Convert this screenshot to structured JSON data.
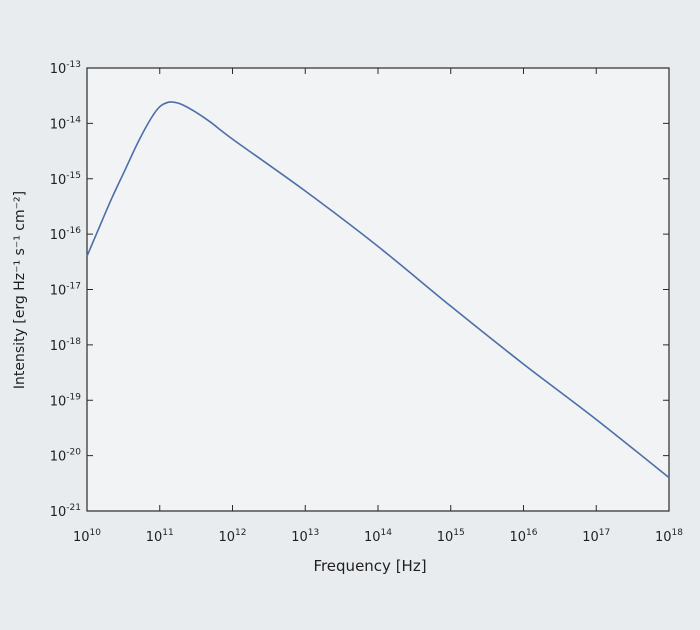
{
  "chart_data": {
    "type": "line",
    "title": "",
    "xlabel": "Frequency [Hz]",
    "ylabel": "Intensity [erg Hz⁻¹ s⁻¹ cm⁻²]",
    "x_scale": "log",
    "y_scale": "log",
    "xlim": [
      10000000000.0,
      1e+18
    ],
    "ylim": [
      1e-21,
      1e-13
    ],
    "grid": false,
    "x_ticks": [
      {
        "base": "10",
        "exp": "10"
      },
      {
        "base": "10",
        "exp": "11"
      },
      {
        "base": "10",
        "exp": "12"
      },
      {
        "base": "10",
        "exp": "13"
      },
      {
        "base": "10",
        "exp": "14"
      },
      {
        "base": "10",
        "exp": "15"
      },
      {
        "base": "10",
        "exp": "16"
      },
      {
        "base": "10",
        "exp": "17"
      },
      {
        "base": "10",
        "exp": "18"
      }
    ],
    "y_ticks": [
      {
        "base": "10",
        "exp": "-13"
      },
      {
        "base": "10",
        "exp": "-14"
      },
      {
        "base": "10",
        "exp": "-15"
      },
      {
        "base": "10",
        "exp": "-16"
      },
      {
        "base": "10",
        "exp": "-17"
      },
      {
        "base": "10",
        "exp": "-18"
      },
      {
        "base": "10",
        "exp": "-19"
      },
      {
        "base": "10",
        "exp": "-20"
      },
      {
        "base": "10",
        "exp": "-21"
      }
    ],
    "series": [
      {
        "color": "#4c6fa8",
        "points": [
          [
            10000000000.0,
            4e-17
          ],
          [
            15000000000.0,
            1.4e-16
          ],
          [
            22000000000.0,
            4.5e-16
          ],
          [
            33000000000.0,
            1.4e-15
          ],
          [
            50000000000.0,
            4.5e-15
          ],
          [
            75000000000.0,
            1.2e-14
          ],
          [
            100000000000.0,
            2e-14
          ],
          [
            130000000000.0,
            2.4e-14
          ],
          [
            160000000000.0,
            2.4e-14
          ],
          [
            200000000000.0,
            2.2e-14
          ],
          [
            300000000000.0,
            1.65e-14
          ],
          [
            500000000000.0,
            1.05e-14
          ],
          [
            1000000000000.0,
            5.2e-15
          ],
          [
            10000000000000.0,
            6e-16
          ],
          [
            100000000000000.0,
            6e-17
          ],
          [
            1000000000000000.0,
            5e-18
          ],
          [
            1e+16,
            4.5e-19
          ],
          [
            1e+17,
            4.5e-20
          ],
          [
            1e+18,
            4e-21
          ]
        ]
      }
    ]
  }
}
